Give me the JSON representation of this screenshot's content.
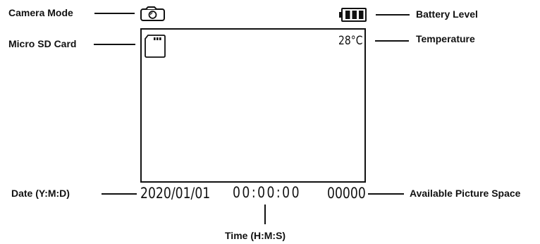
{
  "callouts": {
    "camera_mode": "Camera Mode",
    "micro_sd_card": "Micro SD Card",
    "battery_level": "Battery Level",
    "temperature": "Temperature",
    "date": "Date (Y:M:D)",
    "time": "Time (H:M:S)",
    "available_space": "Available Picture Space"
  },
  "screen": {
    "temperature": "28°C",
    "date": "2020/01/01",
    "time": "00:00:00",
    "picture_count": "00000",
    "battery_bars": 3
  },
  "icons": {
    "camera": "camera-icon",
    "sd_card": "sd-card-icon",
    "battery": "battery-icon"
  }
}
